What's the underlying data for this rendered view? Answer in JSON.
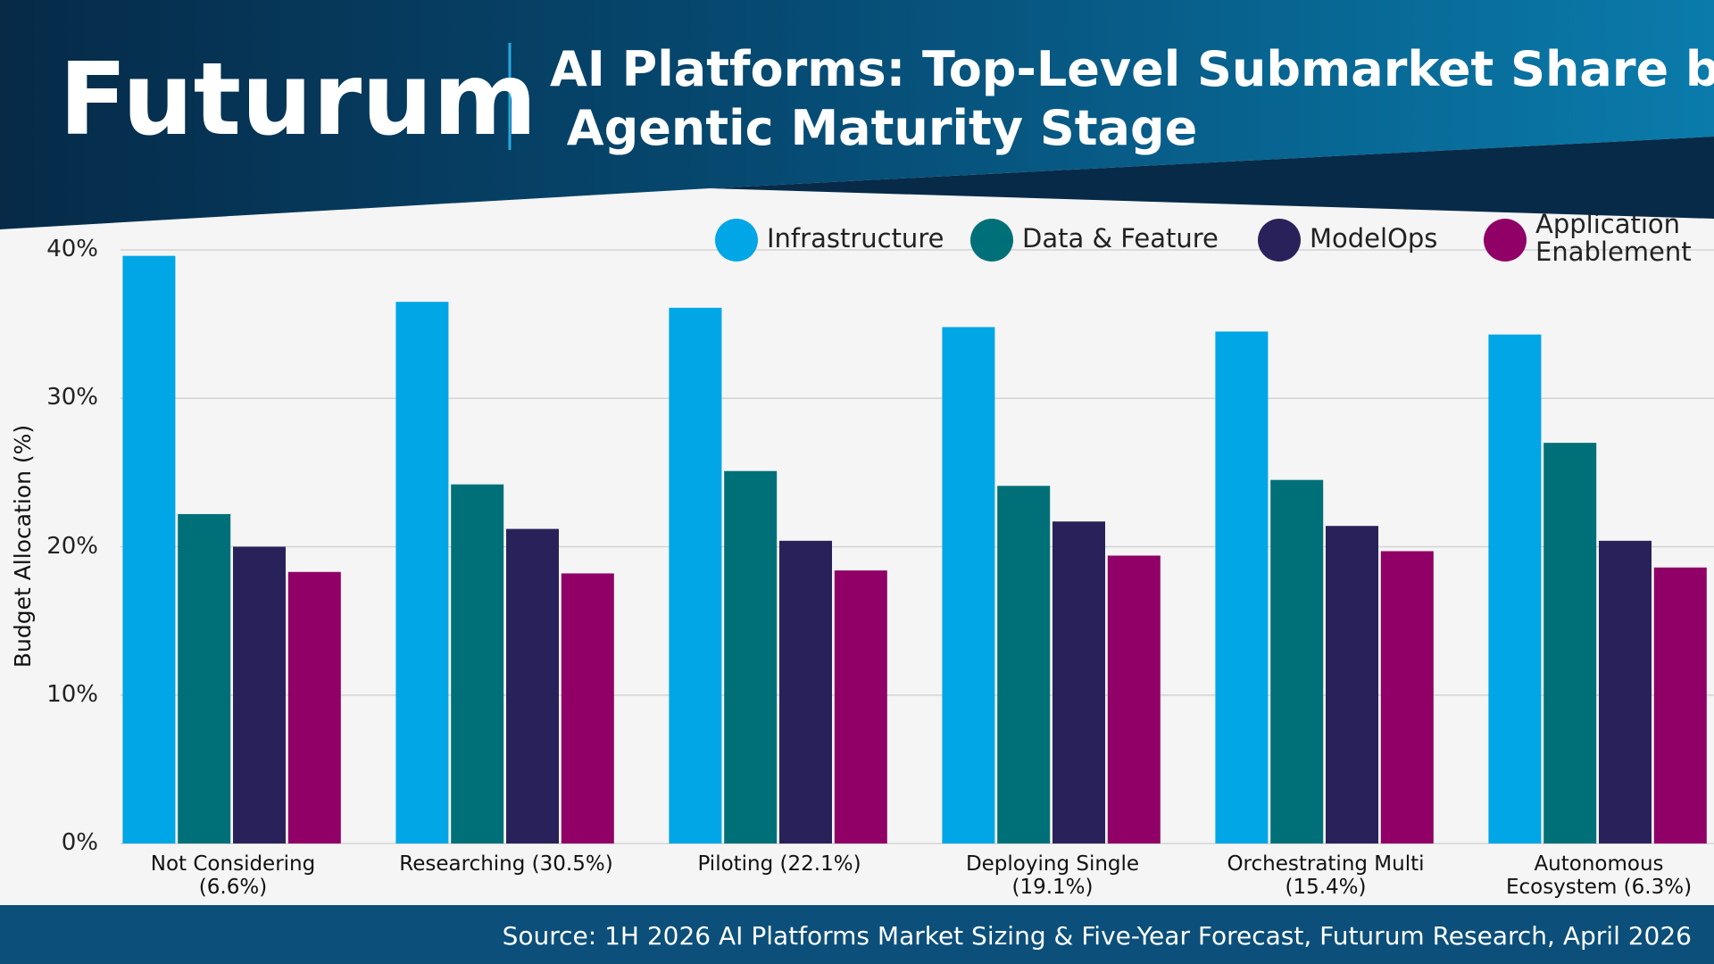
{
  "brand": "Futurum",
  "chart_data": {
    "type": "bar",
    "title": "AI Platforms: Top-Level Submarket Share by Agentic Maturity Stage",
    "ylabel": "Budget Allocation (%)",
    "source": "Source: 1H 2026 AI Platforms Market Sizing & Five-Year Forecast, Futurum Research, April 2026",
    "categories": [
      "Not Considering\n(6.6%)",
      "Researching (30.5%)",
      "Piloting (22.1%)",
      "Deploying Single\n(19.1%)",
      "Orchestrating Multi\n(15.4%)",
      "Autonomous\nEcosystem (6.3%)"
    ],
    "series": [
      {
        "name": "Infrastructure",
        "color": "#00a6e6",
        "values": [
          39.6,
          36.5,
          36.1,
          34.8,
          34.5,
          34.3
        ]
      },
      {
        "name": "Data & Feature",
        "color": "#007078",
        "values": [
          22.2,
          24.2,
          25.1,
          24.1,
          24.5,
          27.0
        ]
      },
      {
        "name": "ModelOps",
        "color": "#29225a",
        "values": [
          20.0,
          21.2,
          20.4,
          21.7,
          21.4,
          20.4
        ]
      },
      {
        "name": "Application\nEnablement",
        "color": "#900066",
        "values": [
          18.3,
          18.2,
          18.4,
          19.4,
          19.7,
          18.6
        ]
      }
    ],
    "ylim": [
      0,
      40
    ],
    "yticks": [
      {
        "value": 0,
        "label": "0%"
      },
      {
        "value": 10,
        "label": "10%"
      },
      {
        "value": 20,
        "label": "20%"
      },
      {
        "value": 30,
        "label": "30%"
      },
      {
        "value": 40,
        "label": "40%"
      }
    ],
    "grid": true,
    "legend": "top-right"
  }
}
